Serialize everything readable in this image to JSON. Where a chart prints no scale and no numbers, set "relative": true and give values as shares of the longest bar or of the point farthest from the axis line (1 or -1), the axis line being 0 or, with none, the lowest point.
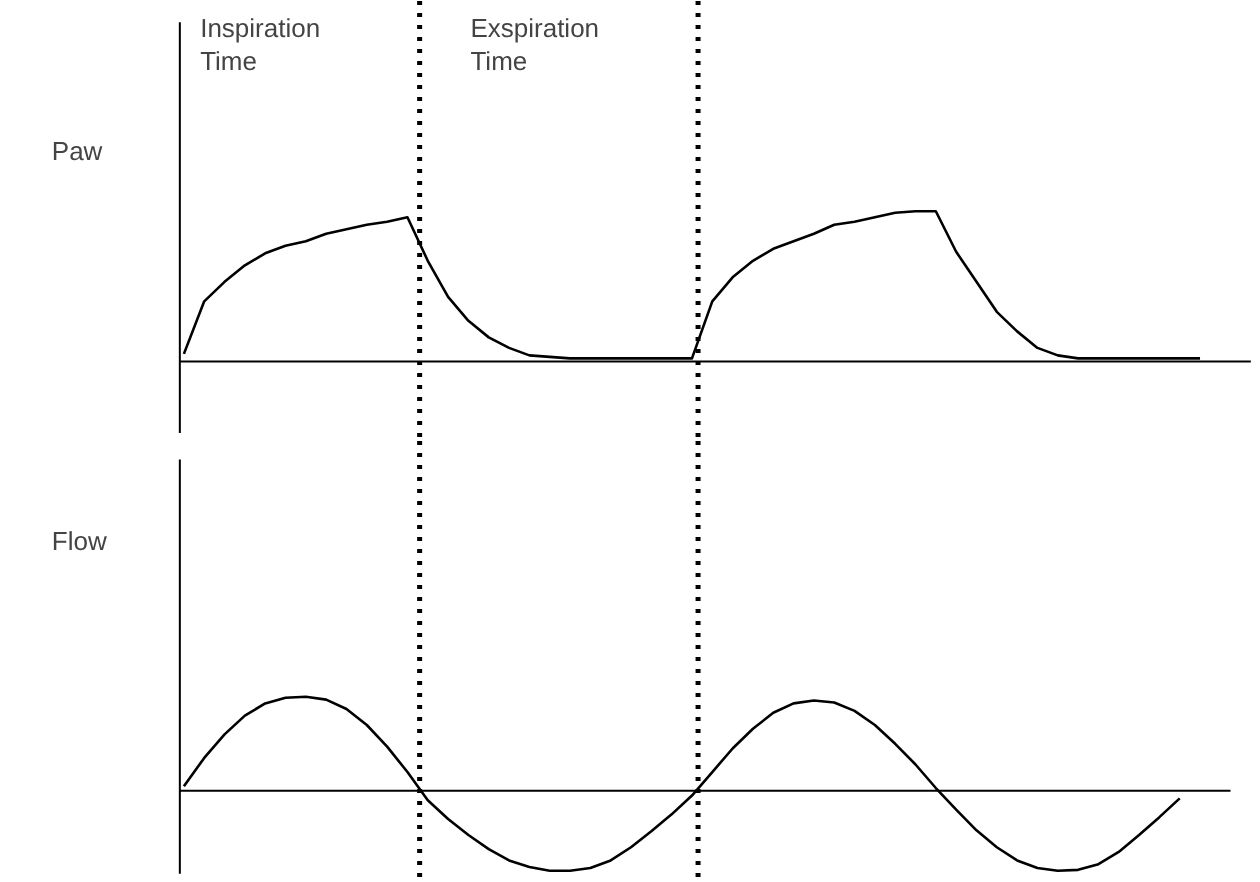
{
  "chart_data": [
    {
      "type": "line",
      "ylabel": "Paw",
      "relative": true,
      "color": "#000000",
      "categories": [
        null,
        null,
        null,
        null,
        null,
        null,
        null,
        null,
        null,
        null,
        null,
        null,
        null,
        null,
        null,
        null,
        null,
        null,
        null,
        null,
        null,
        null,
        null,
        null,
        null,
        null,
        null,
        null,
        null,
        null,
        null,
        null,
        null,
        null,
        null,
        null,
        null,
        null,
        null,
        null,
        null,
        null,
        null,
        null,
        null,
        null,
        null,
        null,
        null,
        null,
        null
      ],
      "values": [
        0.05,
        0.4,
        0.53,
        0.64,
        0.72,
        0.77,
        0.8,
        0.85,
        0.88,
        0.91,
        0.93,
        0.96,
        0.67,
        0.43,
        0.27,
        0.16,
        0.09,
        0.04,
        0.03,
        0.02,
        0.02,
        0.02,
        0.02,
        0.02,
        0.02,
        0.02,
        0.4,
        0.56,
        0.67,
        0.75,
        0.8,
        0.85,
        0.91,
        0.93,
        0.96,
        0.99,
        1,
        1,
        0.73,
        0.53,
        0.33,
        0.2,
        0.09,
        0.04,
        0.02,
        0.02,
        0.02,
        0.02,
        0.02,
        0.02,
        0.02
      ],
      "annotations": [
        "Inspiration\nTime",
        "Exspiration\nTime"
      ]
    },
    {
      "type": "line",
      "ylabel": "Flow",
      "relative": true,
      "color": "#000000",
      "categories": [
        null,
        null,
        null,
        null,
        null,
        null,
        null,
        null,
        null,
        null,
        null,
        null,
        null,
        null,
        null,
        null,
        null,
        null,
        null,
        null,
        null,
        null,
        null,
        null,
        null,
        null,
        null,
        null,
        null,
        null,
        null,
        null,
        null,
        null,
        null,
        null,
        null,
        null,
        null,
        null,
        null,
        null,
        null,
        null,
        null,
        null,
        null,
        null,
        null,
        null
      ],
      "values": [
        0.05,
        0.35,
        0.6,
        0.8,
        0.93,
        0.99,
        1,
        0.97,
        0.87,
        0.7,
        0.47,
        0.2,
        -0.1,
        -0.3,
        -0.47,
        -0.62,
        -0.74,
        -0.81,
        -0.85,
        -0.85,
        -0.82,
        -0.74,
        -0.6,
        -0.43,
        -0.25,
        -0.05,
        0.2,
        0.45,
        0.66,
        0.83,
        0.93,
        0.96,
        0.94,
        0.85,
        0.7,
        0.5,
        0.28,
        0.03,
        -0.2,
        -0.42,
        -0.6,
        -0.74,
        -0.82,
        -0.85,
        -0.84,
        -0.78,
        -0.65,
        -0.47,
        -0.28,
        -0.08
      ]
    }
  ]
}
